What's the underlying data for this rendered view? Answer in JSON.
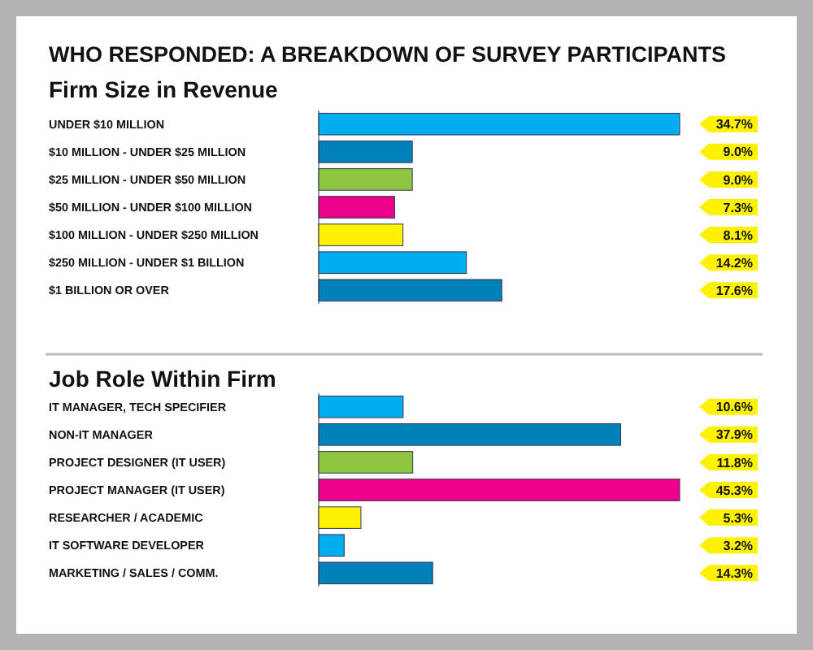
{
  "chart_data": [
    {
      "type": "bar",
      "orientation": "horizontal",
      "title": "WHO RESPONDED: A BREAKDOWN OF SURVEY PARTICIPANTS",
      "subtitle": "Firm Size in Revenue",
      "categories": [
        "UNDER $10 MILLION",
        "$10 MILLION - UNDER $25 MILLION",
        "$25 MILLION - UNDER $50 MILLION",
        "$50 MILLION - UNDER $100 MILLION",
        "$100 MILLION - UNDER $250 MILLION",
        "$250 MILLION - UNDER $1 BILLION",
        "$1 BILLION OR OVER"
      ],
      "values": [
        34.7,
        9.0,
        9.0,
        7.3,
        8.1,
        14.2,
        17.6
      ],
      "value_labels": [
        "34.7%",
        "9.0%",
        "9.0%",
        "7.3%",
        "8.1%",
        "14.2%",
        "17.6%"
      ],
      "colors": [
        "#00aeef",
        "#0081b8",
        "#8dc63f",
        "#ec008c",
        "#fff200",
        "#00aeef",
        "#0081b8"
      ]
    },
    {
      "type": "bar",
      "orientation": "horizontal",
      "title": "Job Role Within Firm",
      "categories": [
        "IT MANAGER, TECH SPECIFIER",
        "NON-IT MANAGER",
        "PROJECT DESIGNER (IT USER)",
        "PROJECT MANAGER (IT USER)",
        "RESEARCHER / ACADEMIC",
        "IT SOFTWARE DEVELOPER",
        "MARKETING / SALES / COMM."
      ],
      "values": [
        10.6,
        37.9,
        11.8,
        45.3,
        5.3,
        3.2,
        14.3
      ],
      "value_labels": [
        "10.6%",
        "37.9%",
        "11.8%",
        "45.3%",
        "5.3%",
        "3.2%",
        "14.3%"
      ],
      "colors": [
        "#00aeef",
        "#0081b8",
        "#8dc63f",
        "#ec008c",
        "#fff200",
        "#00aeef",
        "#0081b8"
      ]
    }
  ]
}
